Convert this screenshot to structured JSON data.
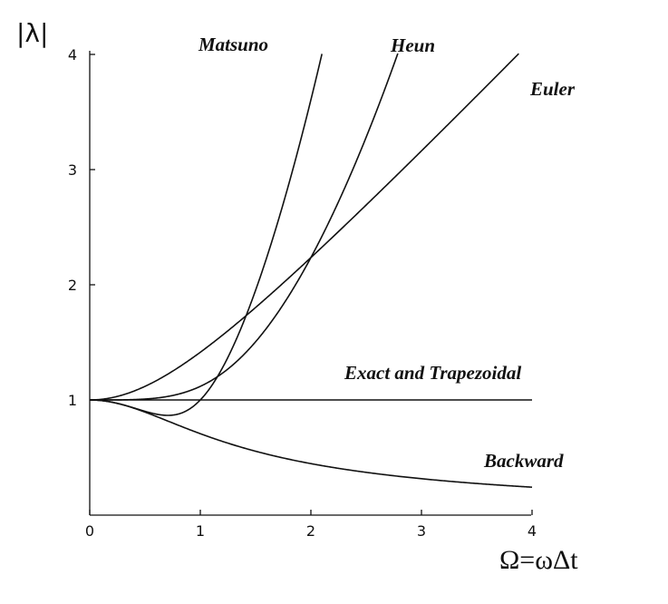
{
  "chart_data": {
    "type": "line",
    "xlabel": "Ω=ωΔt",
    "ylabel": "|λ|",
    "xlim": [
      0,
      4
    ],
    "ylim": [
      0,
      4
    ],
    "x_ticks": [
      "0",
      "1",
      "2",
      "3",
      "4"
    ],
    "y_ticks": [
      "1",
      "2",
      "3",
      "4"
    ],
    "grid": false,
    "series": [
      {
        "name": "Euler",
        "formula": "sqrt(1+Ω²)",
        "x_max": 3.88
      },
      {
        "name": "Matsuno",
        "formula": "sqrt(1-Ω²+Ω⁴)",
        "x_max": 2.1
      },
      {
        "name": "Heun",
        "formula": "sqrt(1+Ω⁴/4)",
        "x_max": 2.8
      },
      {
        "name": "Exact and Trapezoidal",
        "formula": "1",
        "x_max": 4.0
      },
      {
        "name": "Backward",
        "formula": "1/sqrt(1+Ω²)",
        "x_max": 4.0
      }
    ]
  }
}
